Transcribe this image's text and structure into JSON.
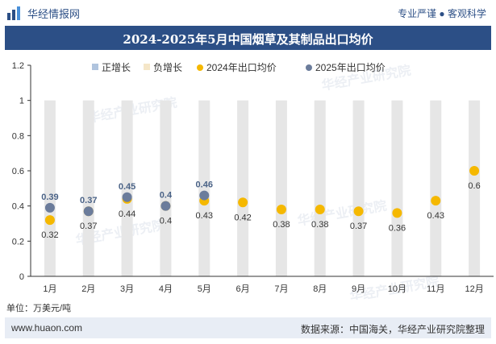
{
  "header": {
    "site_name": "华经情报网",
    "slogan": "专业严谨 ● 客观科学"
  },
  "chart_data": {
    "type": "scatter",
    "title": "2024-2025年5月中国烟草及其制品出口均价",
    "categories": [
      "1月",
      "2月",
      "3月",
      "4月",
      "5月",
      "6月",
      "7月",
      "8月",
      "9月",
      "10月",
      "11月",
      "12月"
    ],
    "ylim": [
      0,
      1.2
    ],
    "yticks": [
      0,
      0.2,
      0.4,
      0.6,
      0.8,
      1,
      1.2
    ],
    "ytick_labels": [
      "0",
      "0.2",
      "0.4",
      "0.6",
      "0.8",
      "1",
      "1.2"
    ],
    "legend": [
      "正增长",
      "负增长",
      "2024年出口均价",
      "2025年出口均价"
    ],
    "series": [
      {
        "name": "2024年出口均价",
        "values": [
          0.32,
          0.37,
          0.44,
          0.4,
          0.43,
          0.42,
          0.38,
          0.38,
          0.37,
          0.36,
          0.43,
          0.6
        ],
        "labels": [
          "0.32",
          "0.37",
          "0.44",
          "0.4",
          "0.43",
          "0.42",
          "0.38",
          "0.38",
          "0.37",
          "0.36",
          "0.43",
          "0.6"
        ]
      },
      {
        "name": "2025年出口均价",
        "values": [
          0.39,
          0.37,
          0.45,
          0.4,
          0.46
        ],
        "labels": [
          "0.39",
          "0.37",
          "0.45",
          "0.4",
          "0.46"
        ]
      }
    ],
    "colors": {
      "positive": "#b0c4de",
      "negative": "#f5e6c8",
      "s2024": "#f5b800",
      "s2025": "#6b7c9b",
      "bar": "#e6e6e6",
      "label2025": "#4a6286"
    }
  },
  "unit_label": "单位：万美元/吨",
  "watermark": "华经产业研究院",
  "footer": {
    "url": "www.huaon.com",
    "source": "数据来源：中国海关，华经产业研究院整理"
  }
}
